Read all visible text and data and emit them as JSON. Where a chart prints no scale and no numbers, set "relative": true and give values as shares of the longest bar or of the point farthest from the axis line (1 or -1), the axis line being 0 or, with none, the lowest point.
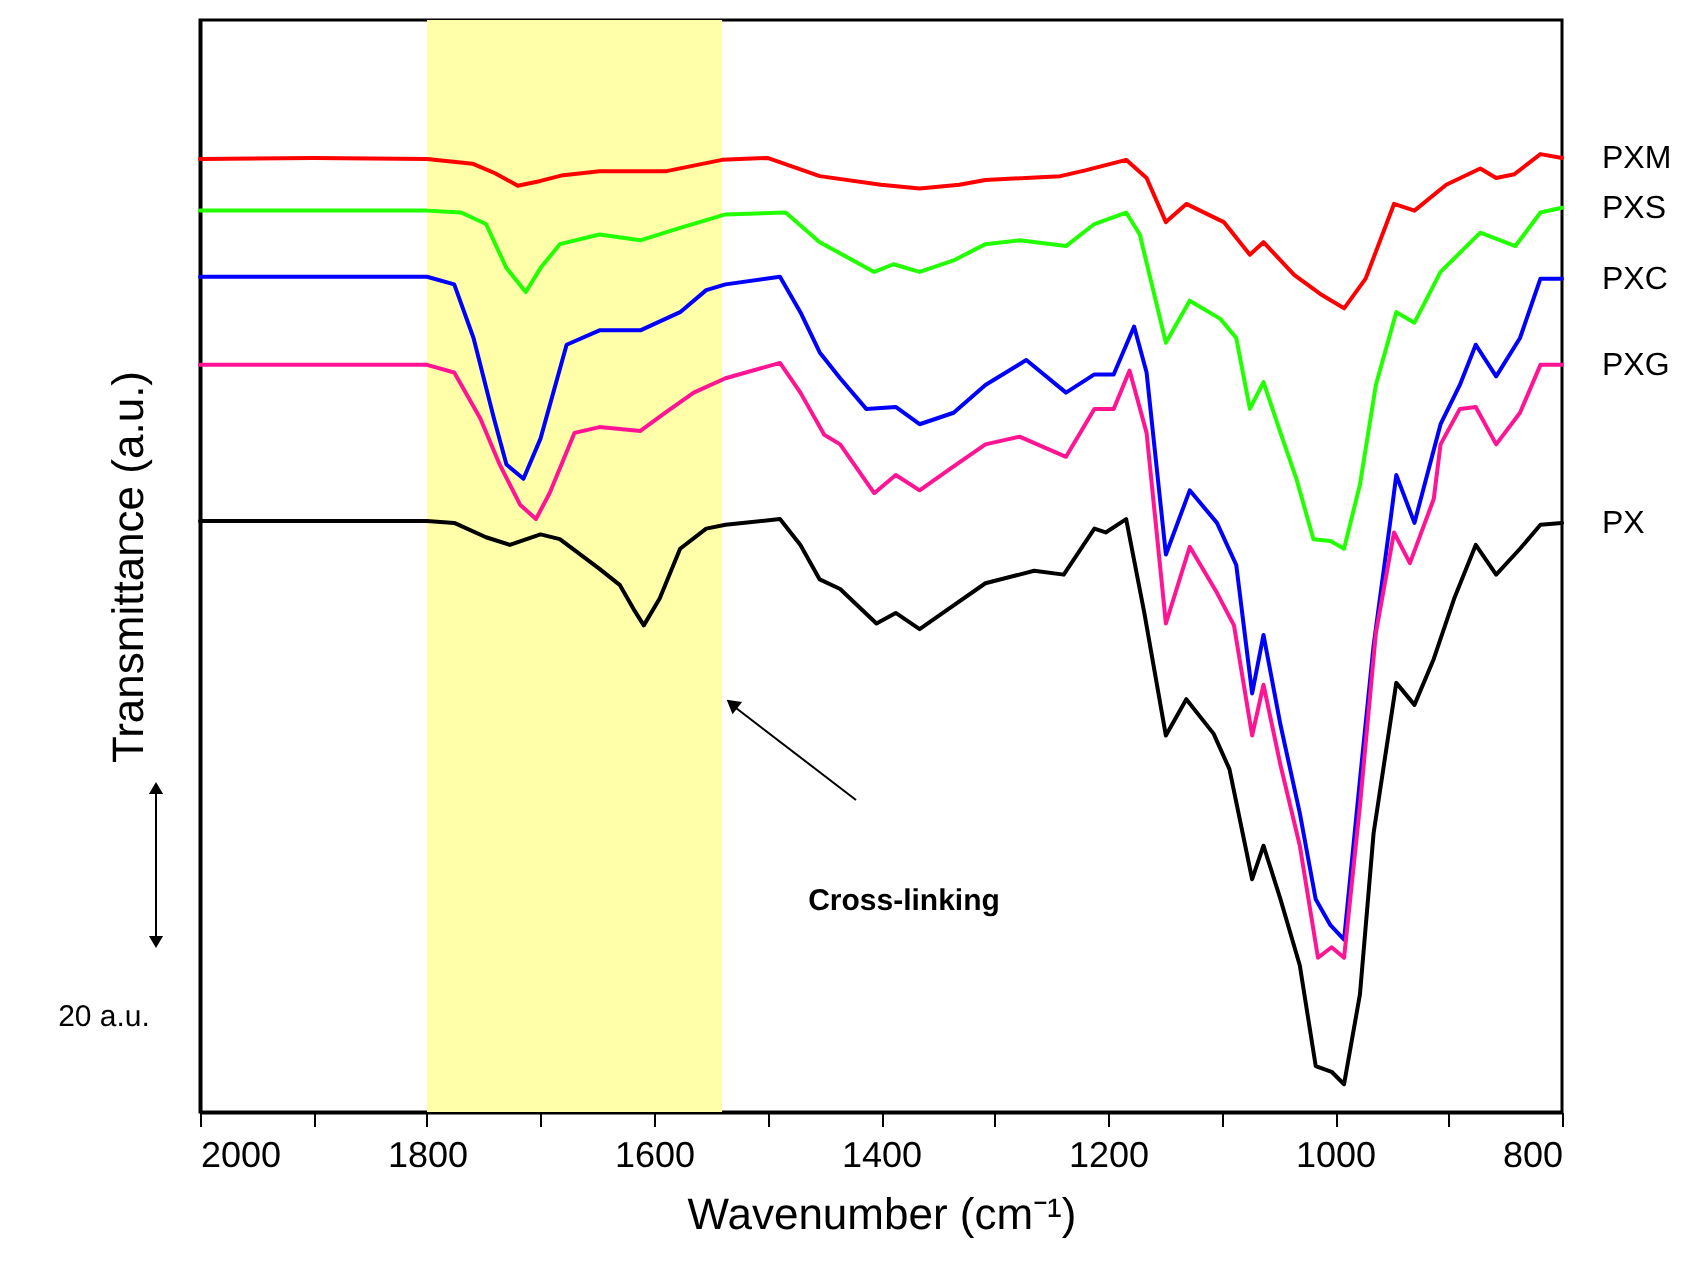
{
  "chart_data": {
    "type": "line",
    "relative": true,
    "xlabel": "Wavenumber (cm⁻¹)",
    "ylabel": "Transmittance (a.u.)",
    "xlim": [
      2000,
      800
    ],
    "xticks": [
      2000,
      {
        "value": 1900,
        "label": null
      },
      1800,
      {
        "value": 1700,
        "label": null
      },
      1600,
      {
        "value": 1500,
        "label": null
      },
      1400,
      {
        "value": 1300,
        "label": null
      },
      1200,
      {
        "value": 1100,
        "label": null
      },
      1000,
      {
        "value": 900,
        "label": null
      },
      800
    ],
    "grid": false,
    "legend": false,
    "bands": [
      {
        "axis": "x",
        "from": 1800,
        "to": 1540,
        "color": "#ffffaa"
      }
    ],
    "annotations": [
      "Cross-linking",
      "20 a.u."
    ],
    "series": [
      {
        "name": "PXM",
        "color": "#ff0000",
        "x": [
          2000,
          1900,
          1800,
          1760,
          1740,
          1720,
          1700,
          1680,
          1648,
          1590,
          1540,
          1500,
          1454,
          1400,
          1366,
          1331,
          1308,
          1242,
          1220,
          1184,
          1166,
          1149,
          1131,
          1098,
          1075,
          1063,
          1036,
          1013,
          992,
          973,
          948,
          930,
          902,
          872,
          858,
          842,
          819,
          800
        ],
        "values": [
          0.995,
          0.996,
          0.995,
          0.99,
          0.98,
          0.967,
          0.972,
          0.978,
          0.982,
          0.982,
          0.994,
          0.996,
          0.977,
          0.968,
          0.964,
          0.968,
          0.973,
          0.977,
          0.983,
          0.994,
          0.975,
          0.929,
          0.948,
          0.929,
          0.895,
          0.908,
          0.874,
          0.854,
          0.839,
          0.87,
          0.948,
          0.941,
          0.968,
          0.985,
          0.975,
          0.979,
          1.0,
          0.996
        ]
      },
      {
        "name": "PXS",
        "color": "#22ff00",
        "x": [
          2000,
          1900,
          1800,
          1770,
          1748,
          1730,
          1713,
          1700,
          1683,
          1648,
          1612,
          1577,
          1537,
          1484,
          1454,
          1406,
          1389,
          1366,
          1336,
          1308,
          1278,
          1237,
          1212,
          1184,
          1172,
          1149,
          1128,
          1101,
          1087,
          1075,
          1063,
          1048,
          1034,
          1019,
          1004,
          992,
          978,
          964,
          946,
          930,
          907,
          872,
          841,
          819,
          800
        ],
        "values": [
          0.941,
          0.941,
          0.941,
          0.939,
          0.927,
          0.881,
          0.856,
          0.881,
          0.906,
          0.916,
          0.91,
          0.923,
          0.937,
          0.939,
          0.908,
          0.877,
          0.885,
          0.877,
          0.889,
          0.906,
          0.91,
          0.904,
          0.927,
          0.939,
          0.916,
          0.803,
          0.847,
          0.828,
          0.808,
          0.734,
          0.762,
          0.709,
          0.661,
          0.598,
          0.596,
          0.588,
          0.655,
          0.759,
          0.835,
          0.824,
          0.877,
          0.918,
          0.904,
          0.939,
          0.944
        ]
      },
      {
        "name": "PXC",
        "color": "#0000ff",
        "x": [
          2000,
          1900,
          1800,
          1776,
          1759,
          1741,
          1730,
          1715,
          1700,
          1677,
          1648,
          1612,
          1577,
          1554,
          1537,
          1489,
          1471,
          1454,
          1436,
          1413,
          1387,
          1366,
          1336,
          1308,
          1272,
          1237,
          1212,
          1195,
          1177,
          1166,
          1149,
          1128,
          1104,
          1087,
          1073,
          1063,
          1048,
          1031,
          1017,
          1004,
          992,
          978,
          966,
          951,
          946,
          930,
          907,
          890,
          876,
          858,
          837,
          819,
          800
        ],
        "values": [
          0.872,
          0.872,
          0.872,
          0.864,
          0.808,
          0.724,
          0.676,
          0.661,
          0.703,
          0.801,
          0.816,
          0.816,
          0.835,
          0.858,
          0.864,
          0.872,
          0.835,
          0.793,
          0.766,
          0.734,
          0.736,
          0.718,
          0.73,
          0.759,
          0.785,
          0.751,
          0.77,
          0.77,
          0.82,
          0.772,
          0.582,
          0.649,
          0.615,
          0.571,
          0.437,
          0.498,
          0.404,
          0.312,
          0.222,
          0.195,
          0.18,
          0.347,
          0.487,
          0.619,
          0.665,
          0.615,
          0.718,
          0.759,
          0.801,
          0.768,
          0.808,
          0.87,
          0.87
        ]
      },
      {
        "name": "PXG",
        "color": "#ff1493",
        "x": [
          2000,
          1900,
          1800,
          1776,
          1753,
          1736,
          1718,
          1704,
          1692,
          1670,
          1648,
          1612,
          1590,
          1565,
          1537,
          1489,
          1471,
          1450,
          1436,
          1406,
          1387,
          1366,
          1336,
          1308,
          1278,
          1237,
          1212,
          1195,
          1181,
          1166,
          1149,
          1128,
          1104,
          1089,
          1073,
          1063,
          1048,
          1031,
          1015,
          1003,
          992,
          978,
          964,
          948,
          934,
          913,
          907,
          890,
          876,
          858,
          837,
          819,
          800
        ],
        "values": [
          0.78,
          0.78,
          0.78,
          0.772,
          0.724,
          0.676,
          0.634,
          0.619,
          0.646,
          0.709,
          0.715,
          0.711,
          0.73,
          0.751,
          0.766,
          0.782,
          0.751,
          0.707,
          0.697,
          0.646,
          0.665,
          0.649,
          0.674,
          0.697,
          0.705,
          0.684,
          0.734,
          0.734,
          0.774,
          0.709,
          0.51,
          0.59,
          0.542,
          0.508,
          0.393,
          0.446,
          0.362,
          0.278,
          0.161,
          0.172,
          0.161,
          0.32,
          0.5,
          0.605,
          0.573,
          0.64,
          0.697,
          0.734,
          0.736,
          0.697,
          0.73,
          0.78,
          0.78
        ]
      },
      {
        "name": "PX",
        "color": "#000000",
        "x": [
          2000,
          1900,
          1800,
          1776,
          1748,
          1727,
          1700,
          1683,
          1648,
          1630,
          1618,
          1609,
          1595,
          1577,
          1554,
          1537,
          1489,
          1471,
          1454,
          1436,
          1404,
          1387,
          1366,
          1336,
          1308,
          1265,
          1239,
          1212,
          1202,
          1184,
          1168,
          1149,
          1131,
          1107,
          1093,
          1073,
          1063,
          1048,
          1031,
          1017,
          1003,
          992,
          978,
          966,
          946,
          930,
          913,
          895,
          876,
          858,
          837,
          819,
          800
        ],
        "values": [
          0.617,
          0.617,
          0.617,
          0.615,
          0.6,
          0.592,
          0.603,
          0.598,
          0.567,
          0.55,
          0.525,
          0.508,
          0.536,
          0.588,
          0.609,
          0.613,
          0.619,
          0.592,
          0.556,
          0.546,
          0.51,
          0.521,
          0.504,
          0.529,
          0.552,
          0.565,
          0.561,
          0.609,
          0.605,
          0.619,
          0.521,
          0.393,
          0.431,
          0.395,
          0.358,
          0.243,
          0.278,
          0.222,
          0.153,
          0.048,
          0.042,
          0.029,
          0.123,
          0.291,
          0.448,
          0.425,
          0.473,
          0.536,
          0.592,
          0.561,
          0.588,
          0.613,
          0.615
        ]
      }
    ]
  }
}
